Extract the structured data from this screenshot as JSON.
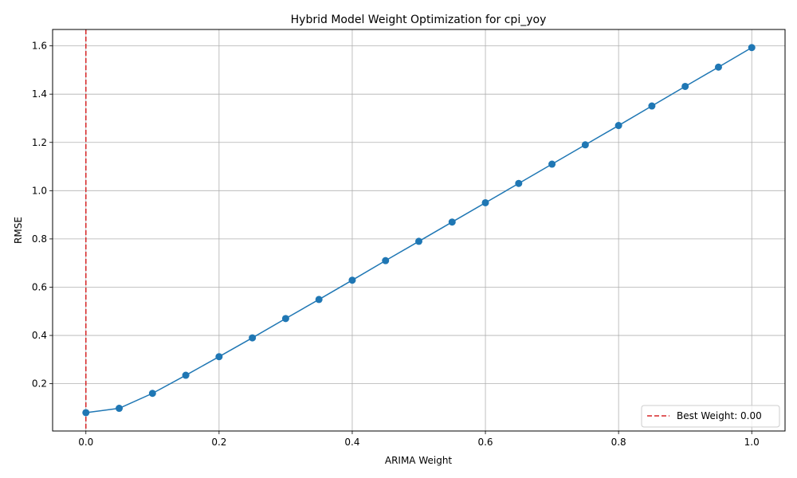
{
  "chart_data": {
    "type": "line",
    "title": "Hybrid Model Weight Optimization for cpi_yoy",
    "xlabel": "ARIMA Weight",
    "ylabel": "RMSE",
    "xlim": [
      -0.05,
      1.05
    ],
    "ylim": [
      0.004,
      1.668
    ],
    "grid": true,
    "x_ticks": [
      0.0,
      0.2,
      0.4,
      0.6,
      0.8,
      1.0
    ],
    "x_tick_labels": [
      "0.0",
      "0.2",
      "0.4",
      "0.6",
      "0.8",
      "1.0"
    ],
    "y_ticks": [
      0.2,
      0.4,
      0.6,
      0.8,
      1.0,
      1.2,
      1.4,
      1.6
    ],
    "y_tick_labels": [
      "0.2",
      "0.4",
      "0.6",
      "0.8",
      "1.0",
      "1.2",
      "1.4",
      "1.6"
    ],
    "series": [
      {
        "color": "#1f77b4",
        "marker": "circle",
        "x": [
          0.0,
          0.05,
          0.1,
          0.15,
          0.2,
          0.25,
          0.3,
          0.35,
          0.4,
          0.45,
          0.5,
          0.55,
          0.6,
          0.65,
          0.7,
          0.75,
          0.8,
          0.85,
          0.9,
          0.95,
          1.0
        ],
        "y": [
          0.08,
          0.098,
          0.16,
          0.235,
          0.312,
          0.39,
          0.47,
          0.549,
          0.629,
          0.71,
          0.79,
          0.87,
          0.95,
          1.03,
          1.11,
          1.19,
          1.27,
          1.351,
          1.432,
          1.512,
          1.593
        ]
      }
    ],
    "reference_lines": [
      {
        "orientation": "vertical",
        "x": 0.0,
        "style": "dashed",
        "color": "#d62728",
        "label": "Best Weight: 0.00"
      }
    ],
    "legend": {
      "placement": "bottom-right",
      "entries": [
        "Best Weight: 0.00"
      ]
    }
  }
}
